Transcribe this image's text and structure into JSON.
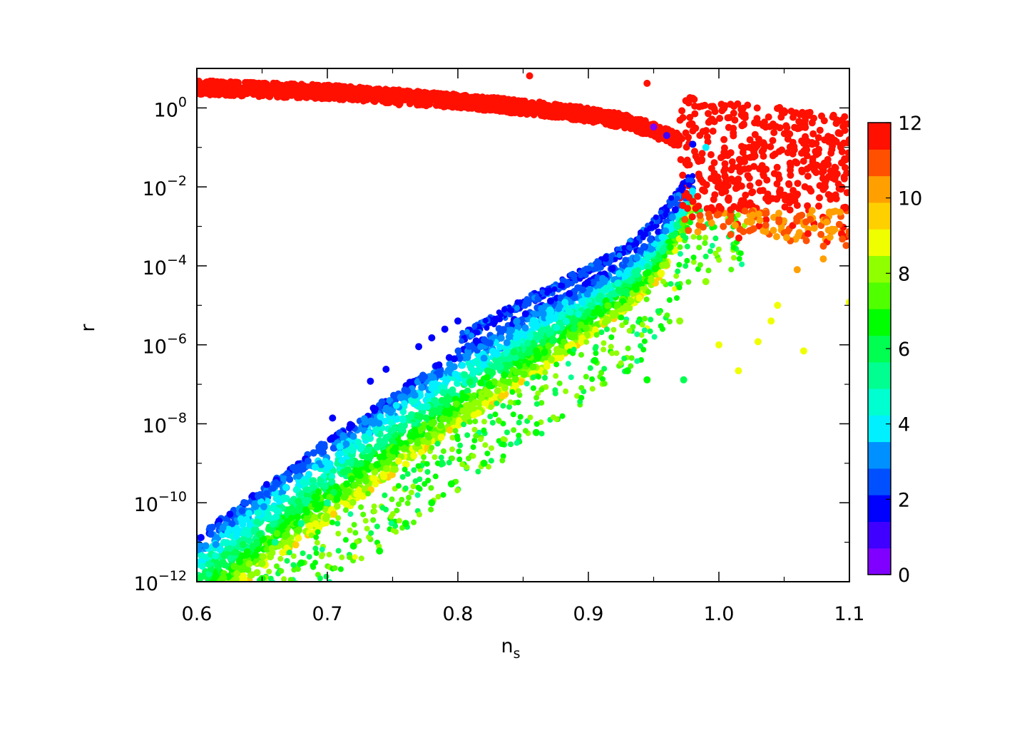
{
  "chart_data": {
    "type": "scatter",
    "title": "",
    "xlabel": "n",
    "xlabel_subscript": "s",
    "ylabel": "r",
    "xlim": [
      0.6,
      1.1
    ],
    "ylim": [
      1e-12,
      10
    ],
    "y_scale": "log",
    "x_ticks": [
      {
        "value": 0.6,
        "label": "0.6"
      },
      {
        "value": 0.7,
        "label": "0.7"
      },
      {
        "value": 0.8,
        "label": "0.8"
      },
      {
        "value": 0.9,
        "label": "0.9"
      },
      {
        "value": 1.0,
        "label": "1.0"
      },
      {
        "value": 1.1,
        "label": "1.1"
      }
    ],
    "y_ticks": [
      {
        "value": 1,
        "base": "10",
        "exp": "0"
      },
      {
        "value": 0.01,
        "base": "10",
        "exp": "−2"
      },
      {
        "value": 0.0001,
        "base": "10",
        "exp": "−4"
      },
      {
        "value": 1e-06,
        "base": "10",
        "exp": "−6"
      },
      {
        "value": 1e-08,
        "base": "10",
        "exp": "−8"
      },
      {
        "value": 1e-10,
        "base": "10",
        "exp": "−10"
      },
      {
        "value": 1e-12,
        "base": "10",
        "exp": "−12"
      }
    ],
    "grid": false,
    "legend": "none",
    "colorbar": {
      "placement": "right",
      "min": 0,
      "max": 12,
      "levels": 16,
      "ticks": [
        {
          "value": 0,
          "label": "0"
        },
        {
          "value": 2,
          "label": "2"
        },
        {
          "value": 4,
          "label": "4"
        },
        {
          "value": 6,
          "label": "6"
        },
        {
          "value": 8,
          "label": "8"
        },
        {
          "value": 10,
          "label": "10"
        },
        {
          "value": 12,
          "label": "12"
        }
      ],
      "colors": [
        "#7f00ff",
        "#3f00ff",
        "#0000ff",
        "#0050ff",
        "#0090ff",
        "#00f0ff",
        "#00ffd0",
        "#00ff90",
        "#00ff50",
        "#00ff00",
        "#50ff00",
        "#90ff00",
        "#f0ff00",
        "#ffd000",
        "#ffa000",
        "#ff5000",
        "#ff1000"
      ]
    },
    "band": {
      "x": [
        0.6,
        0.65,
        0.7,
        0.75,
        0.8,
        0.85,
        0.9,
        0.93,
        0.95,
        0.96,
        0.97,
        0.98
      ],
      "r_upper": [
        1.5e-11,
        2.5e-10,
        4e-09,
        6e-08,
        7e-07,
        6e-06,
        4e-05,
        0.00015,
        0.0006,
        0.0015,
        0.004,
        0.01
      ],
      "r_lower": [
        1e-13,
        2e-12,
        3e-11,
        5e-10,
        8e-09,
        1e-07,
        1.5e-06,
        8e-06,
        3e-05,
        0.0001,
        0.0004,
        0.003
      ]
    },
    "upper_branch": {
      "x": [
        0.6,
        0.7,
        0.8,
        0.85,
        0.9,
        0.93,
        0.95,
        0.97,
        1.0,
        1.05,
        1.1
      ],
      "r": [
        2.2,
        1.7,
        1.0,
        0.7,
        0.45,
        0.3,
        0.18,
        0.1,
        0.07,
        0.05,
        0.03
      ]
    },
    "sample_points": [
      {
        "x": 0.704,
        "y": 1.4e-08,
        "v": 2
      },
      {
        "x": 0.733,
        "y": 1.2e-07,
        "v": 2
      },
      {
        "x": 0.745,
        "y": 2.4e-07,
        "v": 2
      },
      {
        "x": 0.77,
        "y": 9e-07,
        "v": 2
      },
      {
        "x": 0.78,
        "y": 1.5e-06,
        "v": 2
      },
      {
        "x": 0.79,
        "y": 2.5e-06,
        "v": 2
      },
      {
        "x": 0.8,
        "y": 4e-06,
        "v": 2
      },
      {
        "x": 0.945,
        "y": 1.3e-07,
        "v": 7
      },
      {
        "x": 0.973,
        "y": 1.3e-07,
        "v": 6
      },
      {
        "x": 0.93,
        "y": 2.2e-07,
        "v": 7
      },
      {
        "x": 0.905,
        "y": 4e-07,
        "v": 7
      },
      {
        "x": 1.015,
        "y": 2.2e-07,
        "v": 9
      },
      {
        "x": 1.065,
        "y": 7e-07,
        "v": 9
      },
      {
        "x": 1.03,
        "y": 1.2e-06,
        "v": 9
      },
      {
        "x": 1.0,
        "y": 1e-06,
        "v": 9
      },
      {
        "x": 1.04,
        "y": 4e-06,
        "v": 9
      },
      {
        "x": 1.045,
        "y": 1e-05,
        "v": 9
      },
      {
        "x": 1.1,
        "y": 1.2e-05,
        "v": 9
      },
      {
        "x": 1.06,
        "y": 8e-05,
        "v": 10
      },
      {
        "x": 1.08,
        "y": 0.00015,
        "v": 10
      },
      {
        "x": 1.1,
        "y": 0.0006,
        "v": 11
      },
      {
        "x": 0.97,
        "y": 4e-06,
        "v": 8
      },
      {
        "x": 0.99,
        "y": 4e-05,
        "v": 8
      },
      {
        "x": 0.86,
        "y": 6e-09,
        "v": 7
      },
      {
        "x": 0.82,
        "y": 1e-09,
        "v": 7
      },
      {
        "x": 0.795,
        "y": 3e-10,
        "v": 7
      },
      {
        "x": 0.78,
        "y": 1e-10,
        "v": 7
      },
      {
        "x": 0.76,
        "y": 3e-11,
        "v": 7
      },
      {
        "x": 0.72,
        "y": 8e-12,
        "v": 7
      },
      {
        "x": 0.74,
        "y": 6e-12,
        "v": 7
      },
      {
        "x": 0.68,
        "y": 3e-12,
        "v": 7
      },
      {
        "x": 0.65,
        "y": 1.2e-12,
        "v": 7
      },
      {
        "x": 0.62,
        "y": 8e-13,
        "v": 6
      },
      {
        "x": 0.66,
        "y": 1e-11,
        "v": 5
      },
      {
        "x": 0.68,
        "y": 3e-11,
        "v": 5
      },
      {
        "x": 0.7,
        "y": 1e-10,
        "v": 5
      },
      {
        "x": 0.95,
        "y": 0.33,
        "v": 0
      },
      {
        "x": 0.96,
        "y": 0.2,
        "v": 1
      },
      {
        "x": 0.98,
        "y": 0.12,
        "v": 2
      },
      {
        "x": 0.99,
        "y": 0.1,
        "v": 4
      },
      {
        "x": 0.755,
        "y": 1.2,
        "v": 12
      },
      {
        "x": 0.855,
        "y": 6.5,
        "v": 12
      },
      {
        "x": 0.945,
        "y": 4.2,
        "v": 12
      },
      {
        "x": 0.62,
        "y": 3.5,
        "v": 12
      },
      {
        "x": 1.09,
        "y": 0.005,
        "v": 12
      },
      {
        "x": 1.07,
        "y": 0.0015,
        "v": 11
      }
    ]
  }
}
